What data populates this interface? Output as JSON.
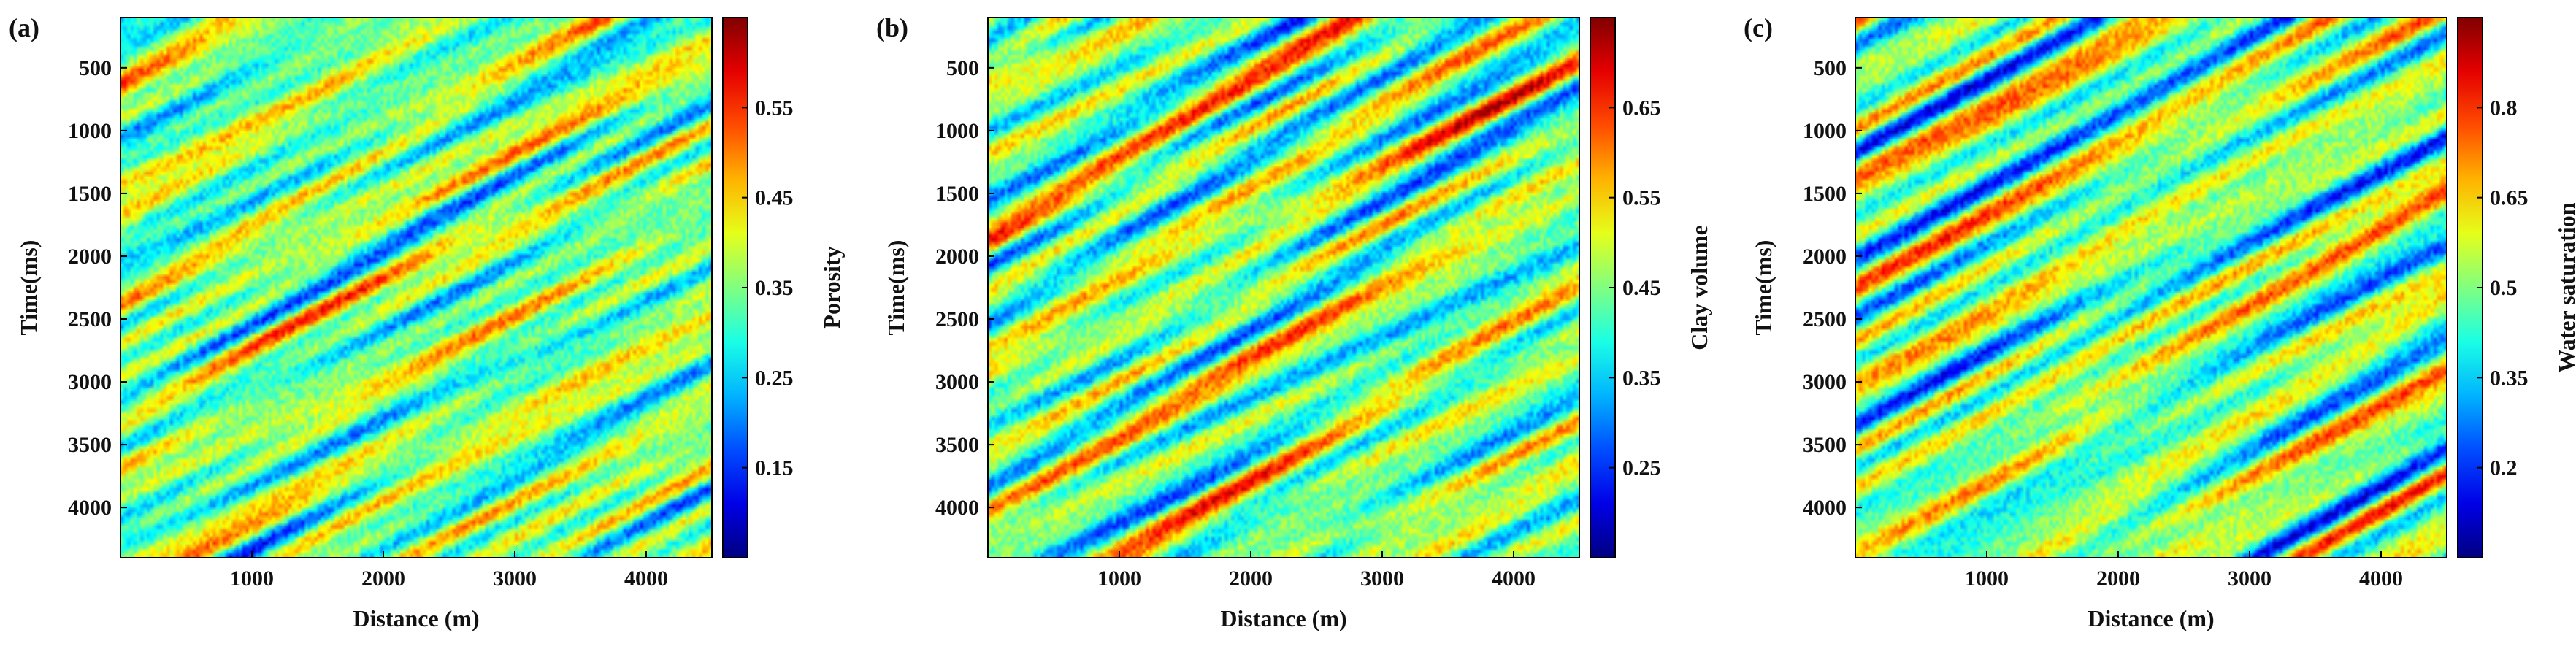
{
  "chart_data": [
    {
      "type": "heatmap",
      "panel_label": "(a)",
      "xlabel": "Distance (m)",
      "ylabel": "Time(ms)",
      "colorbar_label": "Porosity",
      "xlim": [
        0,
        4500
      ],
      "ylim": [
        4400,
        100
      ],
      "xticks": [
        1000,
        2000,
        3000,
        4000
      ],
      "yticks": [
        500,
        1000,
        1500,
        2000,
        2500,
        3000,
        3500,
        4000
      ],
      "clim": [
        0.05,
        0.65
      ],
      "cticks": [
        0.15,
        0.25,
        0.35,
        0.45,
        0.55
      ],
      "colormap": "jet",
      "seed": 11
    },
    {
      "type": "heatmap",
      "panel_label": "(b)",
      "xlabel": "Distance (m)",
      "ylabel": "Time(ms)",
      "colorbar_label": "Clay volume",
      "xlim": [
        0,
        4500
      ],
      "ylim": [
        4400,
        100
      ],
      "xticks": [
        1000,
        2000,
        3000,
        4000
      ],
      "yticks": [
        500,
        1000,
        1500,
        2000,
        2500,
        3000,
        3500,
        4000
      ],
      "clim": [
        0.15,
        0.75
      ],
      "cticks": [
        0.25,
        0.35,
        0.45,
        0.55,
        0.65
      ],
      "colormap": "jet",
      "seed": 23
    },
    {
      "type": "heatmap",
      "panel_label": "(c)",
      "xlabel": "Distance (m)",
      "ylabel": "Time(ms)",
      "colorbar_label": "Water saturation",
      "xlim": [
        0,
        4500
      ],
      "ylim": [
        4400,
        100
      ],
      "xticks": [
        1000,
        2000,
        3000,
        4000
      ],
      "yticks": [
        500,
        1000,
        1500,
        2000,
        2500,
        3000,
        3500,
        4000
      ],
      "clim": [
        0.05,
        0.95
      ],
      "cticks": [
        0.2,
        0.35,
        0.5,
        0.65,
        0.8
      ],
      "colormap": "jet",
      "seed": 37
    }
  ]
}
